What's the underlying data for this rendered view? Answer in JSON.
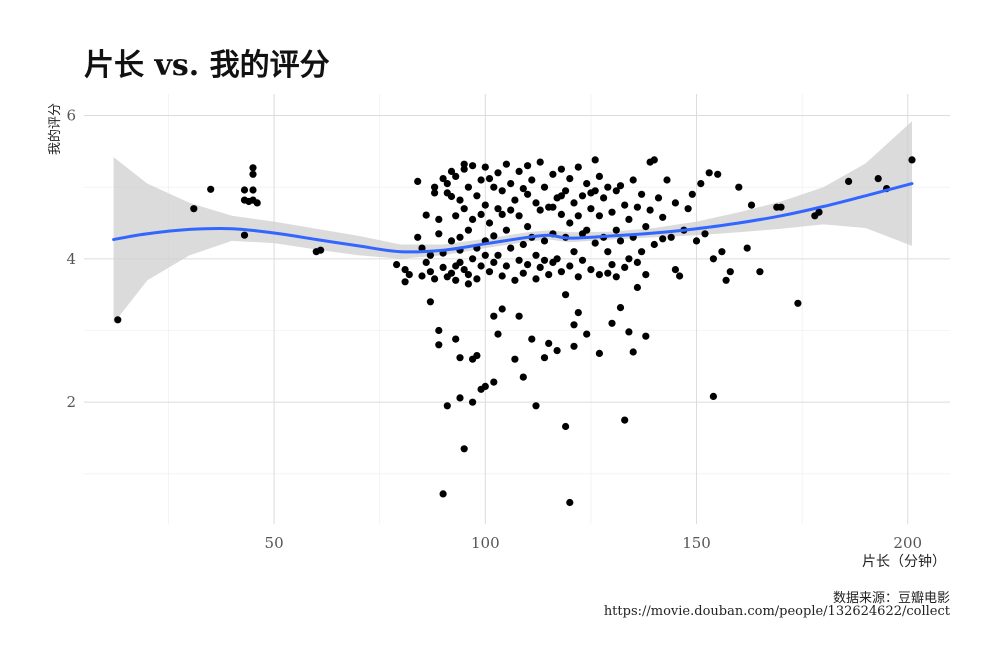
{
  "chart_data": {
    "type": "scatter",
    "title": "片长 vs. 我的评分",
    "xlabel": "片长（分钟）",
    "ylabel": "我的评分",
    "xlim": [
      5,
      210
    ],
    "ylim": [
      0.3,
      6.3
    ],
    "x_ticks": [
      50,
      100,
      150,
      200
    ],
    "y_ticks": [
      2,
      4,
      6
    ],
    "grid": true,
    "smooth": {
      "color": "#3366ff",
      "x": [
        12,
        20,
        30,
        40,
        50,
        60,
        70,
        80,
        90,
        100,
        110,
        115,
        120,
        130,
        140,
        150,
        160,
        170,
        180,
        190,
        201
      ],
      "y": [
        4.27,
        4.35,
        4.41,
        4.42,
        4.36,
        4.27,
        4.18,
        4.1,
        4.12,
        4.21,
        4.3,
        4.33,
        4.29,
        4.32,
        4.36,
        4.42,
        4.5,
        4.6,
        4.73,
        4.88,
        5.05
      ],
      "lower": [
        3.1,
        3.7,
        4.05,
        4.25,
        4.22,
        4.13,
        4.05,
        4.0,
        4.05,
        4.15,
        4.24,
        4.27,
        4.23,
        4.27,
        4.3,
        4.33,
        4.37,
        4.42,
        4.48,
        4.43,
        4.18
      ],
      "upper": [
        5.42,
        5.05,
        4.78,
        4.6,
        4.52,
        4.42,
        4.32,
        4.2,
        4.2,
        4.28,
        4.37,
        4.4,
        4.37,
        4.38,
        4.43,
        4.52,
        4.65,
        4.8,
        5.0,
        5.33,
        5.92
      ]
    },
    "points": [
      [
        13,
        3.15
      ],
      [
        31,
        4.7
      ],
      [
        35,
        4.97
      ],
      [
        43,
        4.96
      ],
      [
        43,
        4.82
      ],
      [
        43,
        4.33
      ],
      [
        44,
        4.8
      ],
      [
        45,
        5.27
      ],
      [
        45,
        5.18
      ],
      [
        45,
        4.96
      ],
      [
        45,
        4.82
      ],
      [
        46,
        4.78
      ],
      [
        60,
        4.1
      ],
      [
        61,
        4.12
      ],
      [
        79,
        3.92
      ],
      [
        81,
        3.68
      ],
      [
        81,
        3.85
      ],
      [
        82,
        3.78
      ],
      [
        84,
        5.08
      ],
      [
        85,
        3.76
      ],
      [
        85,
        4.15
      ],
      [
        86,
        4.61
      ],
      [
        87,
        3.4
      ],
      [
        87,
        3.82
      ],
      [
        88,
        4.92
      ],
      [
        89,
        4.35
      ],
      [
        89,
        3.0
      ],
      [
        89,
        2.8
      ],
      [
        90,
        0.72
      ],
      [
        90,
        5.12
      ],
      [
        91,
        1.95
      ],
      [
        92,
        5.22
      ],
      [
        92,
        4.87
      ],
      [
        93,
        3.9
      ],
      [
        93,
        2.88
      ],
      [
        94,
        2.62
      ],
      [
        94,
        2.06
      ],
      [
        94,
        4.12
      ],
      [
        95,
        1.35
      ],
      [
        95,
        5.32
      ],
      [
        96,
        3.65
      ],
      [
        97,
        2.6
      ],
      [
        97,
        2.0
      ],
      [
        98,
        2.65
      ],
      [
        99,
        2.18
      ],
      [
        100,
        2.22
      ],
      [
        100,
        4.25
      ],
      [
        101,
        5.12
      ],
      [
        102,
        3.2
      ],
      [
        102,
        2.28
      ],
      [
        103,
        2.95
      ],
      [
        104,
        3.3
      ],
      [
        104,
        4.62
      ],
      [
        106,
        4.68
      ],
      [
        107,
        2.6
      ],
      [
        108,
        3.2
      ],
      [
        109,
        2.35
      ],
      [
        110,
        4.9
      ],
      [
        111,
        2.88
      ],
      [
        112,
        1.95
      ],
      [
        114,
        2.62
      ],
      [
        115,
        2.82
      ],
      [
        116,
        4.72
      ],
      [
        117,
        2.72
      ],
      [
        118,
        4.88
      ],
      [
        119,
        1.66
      ],
      [
        119,
        3.5
      ],
      [
        120,
        0.6
      ],
      [
        121,
        2.78
      ],
      [
        121,
        3.08
      ],
      [
        122,
        3.25
      ],
      [
        123,
        4.35
      ],
      [
        124,
        2.95
      ],
      [
        125,
        4.92
      ],
      [
        126,
        5.38
      ],
      [
        127,
        2.68
      ],
      [
        129,
        3.8
      ],
      [
        130,
        3.1
      ],
      [
        131,
        4.95
      ],
      [
        132,
        3.32
      ],
      [
        133,
        1.75
      ],
      [
        134,
        2.98
      ],
      [
        135,
        2.7
      ],
      [
        136,
        3.6
      ],
      [
        137,
        4.1
      ],
      [
        138,
        2.92
      ],
      [
        139,
        5.35
      ],
      [
        140,
        5.38
      ],
      [
        142,
        4.28
      ],
      [
        145,
        3.85
      ],
      [
        146,
        3.76
      ],
      [
        148,
        4.7
      ],
      [
        150,
        4.25
      ],
      [
        153,
        5.2
      ],
      [
        154,
        4.0
      ],
      [
        154,
        2.08
      ],
      [
        155,
        5.18
      ],
      [
        157,
        3.7
      ],
      [
        158,
        3.82
      ],
      [
        160,
        5.0
      ],
      [
        162,
        4.15
      ],
      [
        163,
        4.75
      ],
      [
        165,
        3.82
      ],
      [
        169,
        4.72
      ],
      [
        170,
        4.72
      ],
      [
        174,
        3.38
      ],
      [
        178,
        4.6
      ],
      [
        179,
        4.65
      ],
      [
        186,
        5.08
      ],
      [
        193,
        5.12
      ],
      [
        195,
        4.98
      ],
      [
        201,
        5.38
      ],
      [
        84,
        4.3
      ],
      [
        86,
        3.95
      ],
      [
        87,
        4.05
      ],
      [
        88,
        3.72
      ],
      [
        88,
        5.0
      ],
      [
        89,
        4.55
      ],
      [
        90,
        3.88
      ],
      [
        90,
        4.08
      ],
      [
        91,
        5.05
      ],
      [
        91,
        3.75
      ],
      [
        91,
        4.92
      ],
      [
        92,
        4.25
      ],
      [
        92,
        3.8
      ],
      [
        93,
        5.15
      ],
      [
        93,
        4.6
      ],
      [
        93,
        3.7
      ],
      [
        94,
        4.82
      ],
      [
        94,
        4.3
      ],
      [
        94,
        3.95
      ],
      [
        95,
        5.25
      ],
      [
        95,
        4.7
      ],
      [
        95,
        3.85
      ],
      [
        96,
        5.0
      ],
      [
        96,
        4.4
      ],
      [
        96,
        3.78
      ],
      [
        97,
        5.3
      ],
      [
        97,
        4.55
      ],
      [
        97,
        4.0
      ],
      [
        98,
        4.88
      ],
      [
        98,
        4.15
      ],
      [
        98,
        3.72
      ],
      [
        99,
        5.1
      ],
      [
        99,
        4.62
      ],
      [
        99,
        3.9
      ],
      [
        100,
        5.28
      ],
      [
        100,
        4.75
      ],
      [
        100,
        4.05
      ],
      [
        101,
        4.5
      ],
      [
        101,
        3.82
      ],
      [
        102,
        5.0
      ],
      [
        102,
        4.32
      ],
      [
        102,
        3.95
      ],
      [
        103,
        5.2
      ],
      [
        103,
        4.7
      ],
      [
        103,
        4.05
      ],
      [
        104,
        4.95
      ],
      [
        104,
        3.76
      ],
      [
        105,
        5.32
      ],
      [
        105,
        4.4
      ],
      [
        105,
        3.9
      ],
      [
        106,
        5.05
      ],
      [
        106,
        4.15
      ],
      [
        107,
        4.82
      ],
      [
        107,
        3.7
      ],
      [
        108,
        5.22
      ],
      [
        108,
        4.6
      ],
      [
        108,
        3.98
      ],
      [
        109,
        4.98
      ],
      [
        109,
        4.2
      ],
      [
        109,
        3.8
      ],
      [
        110,
        5.3
      ],
      [
        110,
        4.45
      ],
      [
        110,
        3.92
      ],
      [
        111,
        5.1
      ],
      [
        111,
        4.3
      ],
      [
        112,
        4.78
      ],
      [
        112,
        4.05
      ],
      [
        112,
        3.72
      ],
      [
        113,
        5.35
      ],
      [
        113,
        4.68
      ],
      [
        113,
        3.88
      ],
      [
        114,
        5.0
      ],
      [
        114,
        4.25
      ],
      [
        114,
        3.98
      ],
      [
        115,
        4.72
      ],
      [
        115,
        3.78
      ],
      [
        116,
        5.18
      ],
      [
        116,
        4.35
      ],
      [
        116,
        3.95
      ],
      [
        117,
        4.85
      ],
      [
        117,
        4.0
      ],
      [
        118,
        5.25
      ],
      [
        118,
        4.62
      ],
      [
        118,
        3.82
      ],
      [
        119,
        4.95
      ],
      [
        119,
        4.3
      ],
      [
        120,
        5.12
      ],
      [
        120,
        4.5
      ],
      [
        120,
        3.9
      ],
      [
        121,
        4.78
      ],
      [
        121,
        4.1
      ],
      [
        122,
        5.28
      ],
      [
        122,
        4.6
      ],
      [
        122,
        3.75
      ],
      [
        123,
        4.88
      ],
      [
        123,
        3.98
      ],
      [
        124,
        5.05
      ],
      [
        124,
        4.4
      ],
      [
        125,
        4.7
      ],
      [
        125,
        3.85
      ],
      [
        126,
        4.95
      ],
      [
        126,
        4.22
      ],
      [
        127,
        5.15
      ],
      [
        127,
        4.6
      ],
      [
        127,
        3.78
      ],
      [
        128,
        4.85
      ],
      [
        128,
        4.3
      ],
      [
        129,
        5.0
      ],
      [
        129,
        4.1
      ],
      [
        130,
        4.65
      ],
      [
        130,
        3.92
      ],
      [
        131,
        4.4
      ],
      [
        131,
        3.75
      ],
      [
        132,
        5.02
      ],
      [
        132,
        4.25
      ],
      [
        133,
        4.75
      ],
      [
        133,
        3.88
      ],
      [
        134,
        4.55
      ],
      [
        134,
        4.0
      ],
      [
        135,
        5.1
      ],
      [
        135,
        4.3
      ],
      [
        136,
        4.72
      ],
      [
        136,
        3.95
      ],
      [
        137,
        4.9
      ],
      [
        138,
        4.45
      ],
      [
        138,
        3.78
      ],
      [
        139,
        4.68
      ],
      [
        140,
        4.2
      ],
      [
        141,
        4.85
      ],
      [
        142,
        4.58
      ],
      [
        143,
        5.1
      ],
      [
        144,
        4.3
      ],
      [
        145,
        4.78
      ],
      [
        147,
        4.4
      ],
      [
        149,
        4.9
      ],
      [
        151,
        5.05
      ],
      [
        152,
        4.35
      ],
      [
        156,
        4.1
      ]
    ]
  },
  "caption": {
    "source_line": "数据来源：豆瓣电影",
    "url_line": "https://movie.douban.com/people/132624622/collect"
  }
}
